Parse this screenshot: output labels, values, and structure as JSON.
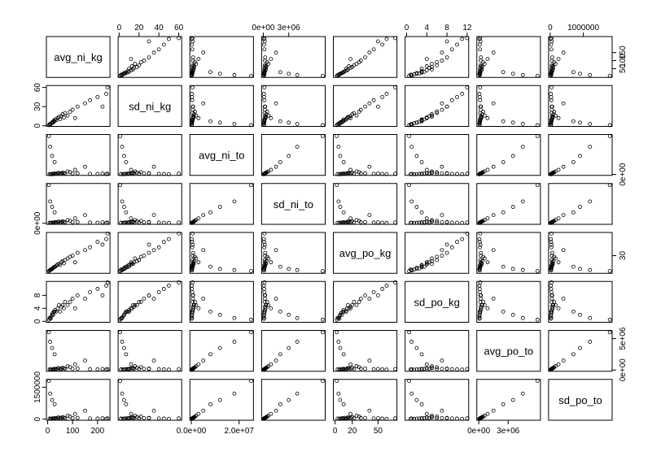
{
  "chart_data": {
    "type": "scatter_matrix",
    "color": "#000000",
    "variables": [
      {
        "name": "avg_ni_kg",
        "lim": [
          -5,
          250
        ],
        "values": [
          5,
          8,
          10,
          12,
          15,
          18,
          20,
          22,
          25,
          28,
          30,
          35,
          40,
          45,
          50,
          55,
          60,
          65,
          70,
          80,
          90,
          100,
          110,
          120,
          150,
          170,
          200,
          220,
          235,
          240
        ],
        "xticks": [
          0,
          100,
          200
        ],
        "yticks": [
          50,
          100,
          150
        ]
      },
      {
        "name": "sd_ni_kg",
        "lim": [
          -1,
          63
        ],
        "values": [
          1,
          2,
          3,
          2,
          4,
          5,
          6,
          5,
          8,
          7,
          10,
          9,
          12,
          14,
          10,
          15,
          18,
          13,
          20,
          16,
          22,
          25,
          12,
          30,
          35,
          40,
          45,
          30,
          50,
          60
        ],
        "xticks": [
          0,
          20,
          40,
          60
        ],
        "yticks": [
          0,
          30,
          60
        ]
      },
      {
        "name": "avg_ni_to",
        "lim": [
          -600000,
          26000000
        ],
        "values": [
          25000000,
          300000,
          18000000,
          200000,
          150000,
          12000000,
          400000,
          250000,
          500000,
          8000000,
          600000,
          350000,
          800000,
          1000000,
          450000,
          700000,
          1200000,
          900000,
          550000,
          2000000,
          1500000,
          650000,
          3000000,
          750000,
          5000000,
          400000,
          300000,
          600000,
          200000,
          500000
        ],
        "xticks": [
          {
            "value": 0,
            "label": "0.0e+00"
          },
          {
            "value": 20000000,
            "label": "2.0e+07"
          }
        ],
        "yticks": [
          {
            "value": 0,
            "label": "0e+00"
          }
        ]
      },
      {
        "name": "sd_ni_to",
        "lim": [
          -200000,
          7300000
        ],
        "values": [
          7000000,
          100000,
          4000000,
          80000,
          60000,
          3000000,
          120000,
          90000,
          150000,
          2000000,
          180000,
          110000,
          250000,
          300000,
          140000,
          200000,
          350000,
          260000,
          160000,
          600000,
          450000,
          190000,
          900000,
          220000,
          1500000,
          130000,
          100000,
          170000,
          70000,
          140000
        ],
        "xticks": [
          {
            "value": 0,
            "label": "0e+00"
          },
          {
            "value": 3000000,
            "label": "3e+06"
          }
        ],
        "yticks": [
          {
            "value": 0,
            "label": "0e+00"
          }
        ]
      },
      {
        "name": "avg_po_kg",
        "lim": [
          -2,
          72
        ],
        "values": [
          2,
          3,
          4,
          5,
          5,
          6,
          7,
          8,
          9,
          10,
          10,
          12,
          14,
          15,
          13,
          18,
          20,
          16,
          22,
          25,
          28,
          30,
          18,
          35,
          40,
          45,
          55,
          50,
          60,
          70
        ],
        "xticks": [
          0,
          20,
          50
        ],
        "yticks": [
          30
        ]
      },
      {
        "name": "sd_po_kg",
        "lim": [
          -0.3,
          12.3
        ],
        "values": [
          0.5,
          1,
          1,
          0.8,
          1.5,
          2,
          2.5,
          2,
          3,
          3,
          3.5,
          3,
          4,
          5,
          3,
          4.5,
          5,
          4,
          6,
          5,
          6,
          7,
          4,
          8,
          7,
          9,
          10,
          8,
          11,
          12
        ],
        "xticks": [
          0,
          4,
          8,
          12
        ],
        "yticks": [
          0,
          4,
          8
        ]
      },
      {
        "name": "avg_po_to",
        "lim": [
          -200000,
          6300000
        ],
        "values": [
          6000000,
          100000,
          4500000,
          80000,
          60000,
          3500000,
          120000,
          90000,
          150000,
          2500000,
          180000,
          110000,
          250000,
          300000,
          140000,
          200000,
          350000,
          260000,
          160000,
          600000,
          450000,
          190000,
          900000,
          220000,
          1500000,
          130000,
          100000,
          170000,
          70000,
          140000
        ],
        "xticks": [
          {
            "value": 0,
            "label": "0e+00"
          },
          {
            "value": 3000000,
            "label": "3e+06"
          }
        ],
        "yticks": [
          {
            "value": 0,
            "label": "0e+00"
          },
          {
            "value": 5000000,
            "label": "5e+06"
          }
        ]
      },
      {
        "name": "sd_po_to",
        "lim": [
          -50000,
          1870000
        ],
        "values": [
          1800000,
          30000,
          1200000,
          20000,
          15000,
          900000,
          35000,
          25000,
          40000,
          700000,
          50000,
          30000,
          70000,
          80000,
          40000,
          55000,
          95000,
          70000,
          45000,
          160000,
          120000,
          50000,
          250000,
          60000,
          400000,
          35000,
          28000,
          45000,
          18000,
          38000
        ],
        "xticks": [
          0,
          1000000
        ],
        "yticks": [
          0,
          1500000
        ]
      }
    ]
  }
}
